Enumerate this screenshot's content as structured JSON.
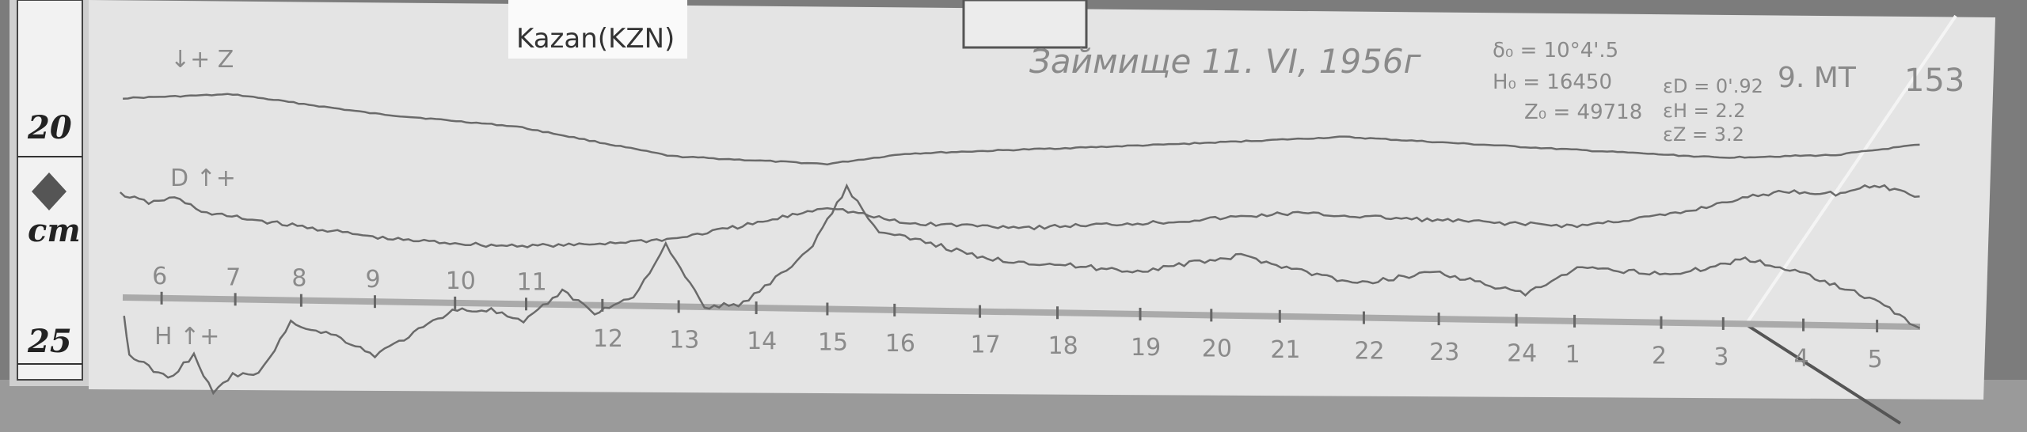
{
  "station_label": "Kazan(KZN)",
  "header": {
    "observatory_date": "Займище 11. VI, 1956г",
    "sheet_number": "153",
    "time_note": "9. МТ"
  },
  "baselines": {
    "d0": "δ₀ = 10°4'.5",
    "h0": "H₀ = 16450",
    "z0": "Z₀ = 49718"
  },
  "scale_values": {
    "eD": "εD = 0'.92",
    "eH": "εH = 2.2",
    "eZ": "εZ = 3.2"
  },
  "trace_labels": {
    "z": "↓+ Z",
    "d": "D ↑+",
    "h": "H ↑+"
  },
  "hour_marks": [
    "6",
    "7",
    "8",
    "9",
    "10",
    "11",
    "12",
    "13",
    "14",
    "15",
    "16",
    "17",
    "18",
    "19",
    "20",
    "21",
    "22",
    "23",
    "24",
    "1",
    "2",
    "3",
    "4",
    "5"
  ],
  "ruler": {
    "top_value": "20",
    "unit": "cm",
    "bottom_value": "25"
  },
  "colors": {
    "paper": "#e4e4e4",
    "trace": "#6a6a6a",
    "background": "#7a7a7a"
  }
}
